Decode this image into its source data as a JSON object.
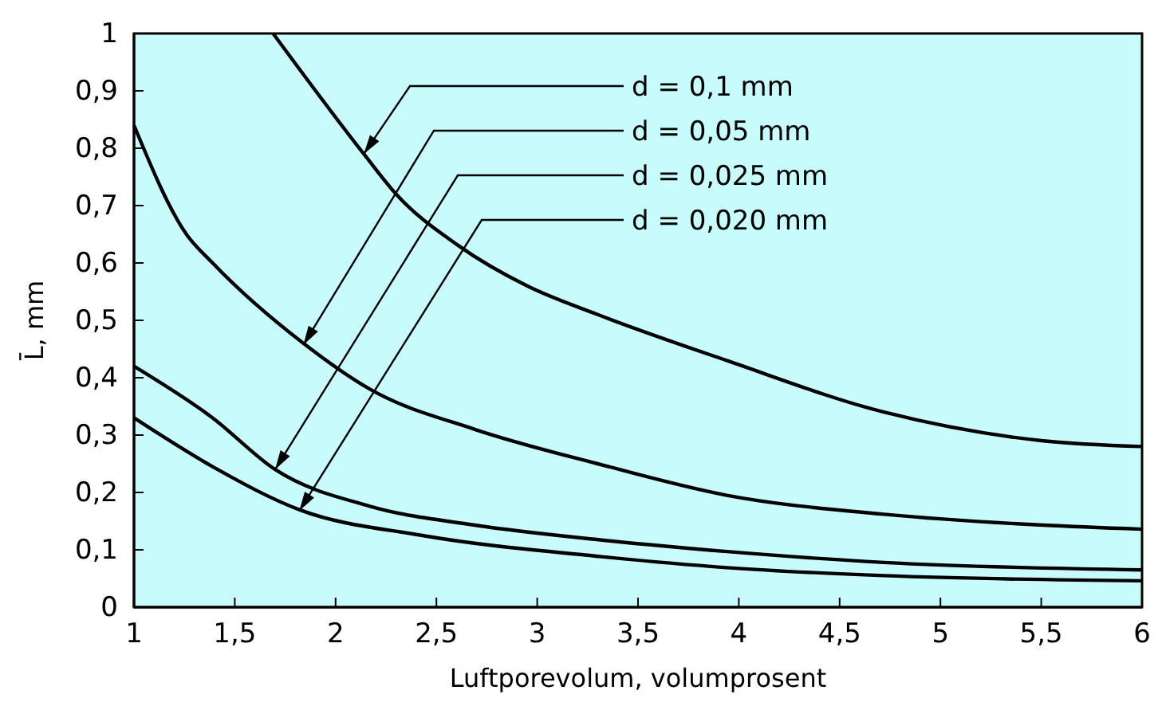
{
  "chart_data": {
    "type": "line",
    "xlabel": "Luftporevolum, volumprosent",
    "ylabel": "L̄, mm",
    "xlim": [
      1,
      6
    ],
    "ylim": [
      0,
      1
    ],
    "xticks": [
      {
        "value": 1,
        "label": "1"
      },
      {
        "value": 1.5,
        "label": "1,5"
      },
      {
        "value": 2,
        "label": "2"
      },
      {
        "value": 2.5,
        "label": "2,5"
      },
      {
        "value": 3,
        "label": "3"
      },
      {
        "value": 3.5,
        "label": "3,5"
      },
      {
        "value": 4,
        "label": "4"
      },
      {
        "value": 4.5,
        "label": "4,5"
      },
      {
        "value": 5,
        "label": "5"
      },
      {
        "value": 5.5,
        "label": "5,5"
      },
      {
        "value": 6,
        "label": "6"
      }
    ],
    "yticks": [
      {
        "value": 0,
        "label": "0"
      },
      {
        "value": 0.1,
        "label": "0,1"
      },
      {
        "value": 0.2,
        "label": "0,2"
      },
      {
        "value": 0.3,
        "label": "0,3"
      },
      {
        "value": 0.4,
        "label": "0,4"
      },
      {
        "value": 0.5,
        "label": "0,5"
      },
      {
        "value": 0.6,
        "label": "0,6"
      },
      {
        "value": 0.7,
        "label": "0,7"
      },
      {
        "value": 0.8,
        "label": "0,8"
      },
      {
        "value": 0.9,
        "label": "0,9"
      },
      {
        "value": 1,
        "label": "1"
      }
    ],
    "grid": false,
    "marker": "none",
    "line_style": "solid",
    "series": [
      {
        "color": "#000000",
        "x": [
          1.69,
          2.14,
          2.3,
          2.61,
          2.95,
          3.3,
          3.94,
          4.72,
          5.51,
          6
        ],
        "values": [
          1.0,
          0.79,
          0.72,
          0.63,
          0.56,
          0.51,
          0.43,
          0.34,
          0.29,
          0.28
        ]
      },
      {
        "color": "#000000",
        "x": [
          1,
          1.26,
          1.39,
          1.84,
          2.17,
          2.69,
          3.3,
          3.94,
          4.72,
          5.51,
          6
        ],
        "values": [
          0.84,
          0.65,
          0.6,
          0.46,
          0.38,
          0.31,
          0.25,
          0.195,
          0.162,
          0.143,
          0.136
        ]
      },
      {
        "color": "#000000",
        "x": [
          1,
          1.39,
          1.7,
          2.17,
          2.69,
          3.32,
          3.94,
          4.72,
          6
        ],
        "values": [
          0.42,
          0.33,
          0.24,
          0.176,
          0.143,
          0.117,
          0.097,
          0.078,
          0.065
        ]
      },
      {
        "color": "#000000",
        "x": [
          1,
          1.39,
          1.82,
          2.43,
          3.32,
          3.94,
          4.72,
          6
        ],
        "values": [
          0.33,
          0.245,
          0.17,
          0.125,
          0.088,
          0.069,
          0.055,
          0.046
        ]
      }
    ],
    "annotations": [
      {
        "text": "d = 0,1 mm",
        "x": 2.14,
        "y": 0.79
      },
      {
        "text": "d = 0,05 mm",
        "x": 1.84,
        "y": 0.457
      },
      {
        "text": "d = 0,025 mm",
        "x": 1.7,
        "y": 0.24
      },
      {
        "text": "d = 0,020 mm",
        "x": 1.82,
        "y": 0.168
      }
    ]
  }
}
